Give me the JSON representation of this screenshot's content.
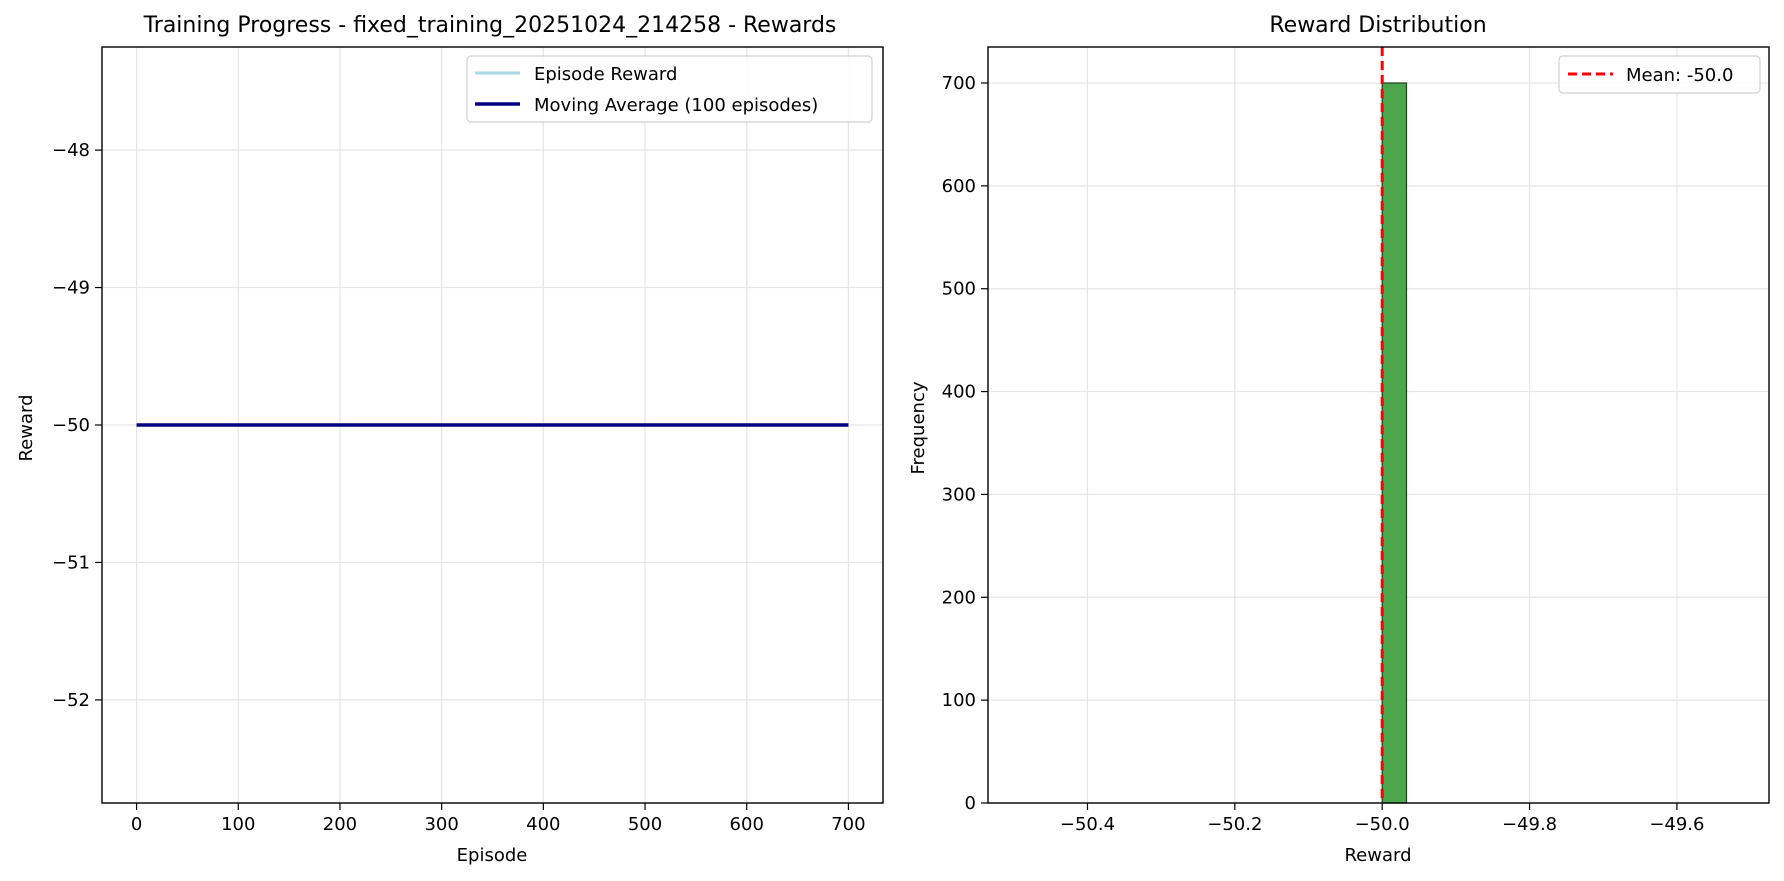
{
  "chart_data": [
    {
      "type": "line",
      "title": "Training Progress - fixed_training_20251024_214258 - Rewards",
      "xlabel": "Episode",
      "ylabel": "Reward",
      "xlim": [
        -34,
        734
      ],
      "ylim": [
        -52.75,
        -47.25
      ],
      "xticks": [
        0,
        100,
        200,
        300,
        400,
        500,
        600,
        700
      ],
      "yticks": [
        -52,
        -51,
        -50,
        -49,
        -48
      ],
      "ytick_labels": [
        "−52",
        "−51",
        "−50",
        "−49",
        "−48"
      ],
      "grid": true,
      "legend_position": "top-right",
      "series": [
        {
          "name": "Episode Reward",
          "color": "#add8e6",
          "x": [
            0,
            700
          ],
          "y": [
            -50,
            -50
          ]
        },
        {
          "name": "Moving Average (100 episodes)",
          "color": "#000080",
          "x": [
            0,
            700
          ],
          "y": [
            -50,
            -50
          ]
        }
      ]
    },
    {
      "type": "bar",
      "title": "Reward Distribution",
      "xlabel": "Reward",
      "ylabel": "Frequency",
      "xlim": [
        -50.535,
        -49.475
      ],
      "ylim": [
        0,
        735
      ],
      "xticks": [
        -50.4,
        -50.2,
        -50.0,
        -49.8,
        -49.6
      ],
      "xtick_labels": [
        "−50.4",
        "−50.2",
        "−50.0",
        "−49.8",
        "−49.6"
      ],
      "yticks": [
        0,
        100,
        200,
        300,
        400,
        500,
        600,
        700
      ],
      "grid": true,
      "legend_position": "top-right",
      "bins": [
        {
          "start": -50.0,
          "end": -49.967,
          "count": 700
        }
      ],
      "bar_color": "#4ca64c",
      "bar_edge_color": "#1f3d1f",
      "mean": {
        "label": "Mean: -50.0",
        "value": -50.0,
        "color": "#ff0000"
      }
    }
  ]
}
